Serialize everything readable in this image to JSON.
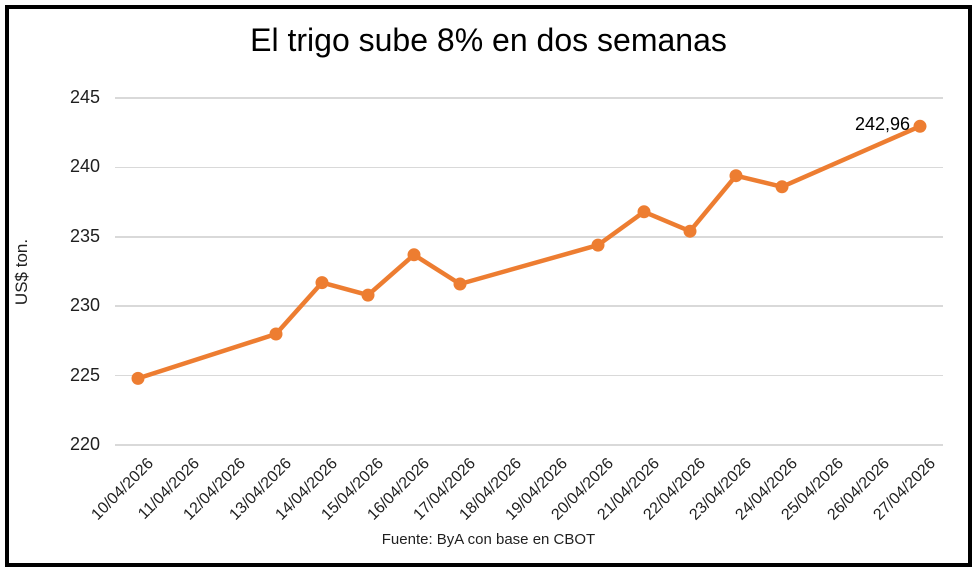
{
  "chart_data": {
    "type": "line",
    "title": "El trigo sube 8% en dos semanas",
    "ylabel": "US$ ton.",
    "source_note": "Fuente: ByA con base en CBOT",
    "ylim": [
      220,
      245
    ],
    "yticks": [
      220,
      225,
      230,
      235,
      240,
      245
    ],
    "grid": true,
    "legend": "none",
    "x_categories": [
      "10/04/2026",
      "11/04/2026",
      "12/04/2026",
      "13/04/2026",
      "14/04/2026",
      "15/04/2026",
      "16/04/2026",
      "17/04/2026",
      "18/04/2026",
      "19/04/2026",
      "20/04/2026",
      "21/04/2026",
      "22/04/2026",
      "23/04/2026",
      "24/04/2026",
      "25/04/2026",
      "26/04/2026",
      "27/04/2026"
    ],
    "series": [
      {
        "color": "#ED7D31",
        "marker": "circle",
        "points": [
          {
            "date": "10/04/2026",
            "value": 224.8
          },
          {
            "date": "13/04/2026",
            "value": 228.0
          },
          {
            "date": "14/04/2026",
            "value": 231.7
          },
          {
            "date": "15/04/2026",
            "value": 230.8
          },
          {
            "date": "16/04/2026",
            "value": 233.7
          },
          {
            "date": "17/04/2026",
            "value": 231.6
          },
          {
            "date": "20/04/2026",
            "value": 234.4
          },
          {
            "date": "21/04/2026",
            "value": 236.8
          },
          {
            "date": "22/04/2026",
            "value": 235.4
          },
          {
            "date": "23/04/2026",
            "value": 239.4
          },
          {
            "date": "24/04/2026",
            "value": 238.6
          },
          {
            "date": "27/04/2026",
            "value": 242.96
          }
        ],
        "last_point_label": "242,96"
      }
    ],
    "colors": {
      "line": "#ED7D31",
      "gridline": "#d9d9d9",
      "axis_text": "#1f1f1f",
      "title_text": "#000000",
      "border": "#000000",
      "background": "#ffffff"
    }
  }
}
